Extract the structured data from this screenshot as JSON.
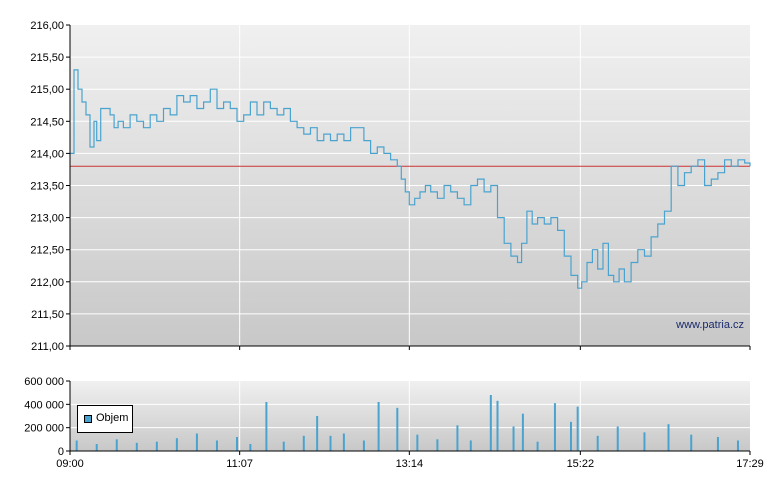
{
  "chart_data": [
    {
      "type": "line",
      "x_ticks": [
        "09:00",
        "11:07",
        "13:14",
        "15:22",
        "17:29"
      ],
      "y_ticks": [
        "211,00",
        "211,50",
        "212,00",
        "212,50",
        "213,00",
        "213,50",
        "214,00",
        "214,50",
        "215,00",
        "215,50",
        "216,00"
      ],
      "ylim": [
        211.0,
        216.0
      ],
      "xlim_minutes": [
        540,
        1049
      ],
      "reference_line": 213.8,
      "watermark": "www.patria.cz",
      "grid": true,
      "colors": {
        "line": "#4aa3cf",
        "reference": "#cc3333",
        "grid": "#ffffff"
      },
      "series": [
        {
          "values": [
            {
              "t": "09:00",
              "v": 214.0
            },
            {
              "t": "09:03",
              "v": 215.3
            },
            {
              "t": "09:06",
              "v": 215.0
            },
            {
              "t": "09:09",
              "v": 214.8
            },
            {
              "t": "09:12",
              "v": 214.6
            },
            {
              "t": "09:15",
              "v": 214.1
            },
            {
              "t": "09:18",
              "v": 214.5
            },
            {
              "t": "09:20",
              "v": 214.2
            },
            {
              "t": "09:23",
              "v": 214.7
            },
            {
              "t": "09:27",
              "v": 214.7
            },
            {
              "t": "09:30",
              "v": 214.6
            },
            {
              "t": "09:33",
              "v": 214.4
            },
            {
              "t": "09:36",
              "v": 214.5
            },
            {
              "t": "09:40",
              "v": 214.4
            },
            {
              "t": "09:45",
              "v": 214.6
            },
            {
              "t": "09:50",
              "v": 214.5
            },
            {
              "t": "09:55",
              "v": 214.4
            },
            {
              "t": "10:00",
              "v": 214.6
            },
            {
              "t": "10:05",
              "v": 214.5
            },
            {
              "t": "10:10",
              "v": 214.7
            },
            {
              "t": "10:15",
              "v": 214.6
            },
            {
              "t": "10:20",
              "v": 214.9
            },
            {
              "t": "10:25",
              "v": 214.8
            },
            {
              "t": "10:30",
              "v": 214.9
            },
            {
              "t": "10:35",
              "v": 214.7
            },
            {
              "t": "10:40",
              "v": 214.8
            },
            {
              "t": "10:45",
              "v": 215.0
            },
            {
              "t": "10:50",
              "v": 214.7
            },
            {
              "t": "10:55",
              "v": 214.8
            },
            {
              "t": "11:00",
              "v": 214.7
            },
            {
              "t": "11:05",
              "v": 214.5
            },
            {
              "t": "11:10",
              "v": 214.6
            },
            {
              "t": "11:15",
              "v": 214.8
            },
            {
              "t": "11:20",
              "v": 214.6
            },
            {
              "t": "11:25",
              "v": 214.8
            },
            {
              "t": "11:30",
              "v": 214.7
            },
            {
              "t": "11:35",
              "v": 214.6
            },
            {
              "t": "11:40",
              "v": 214.7
            },
            {
              "t": "11:45",
              "v": 214.5
            },
            {
              "t": "11:50",
              "v": 214.4
            },
            {
              "t": "11:55",
              "v": 214.3
            },
            {
              "t": "12:00",
              "v": 214.4
            },
            {
              "t": "12:05",
              "v": 214.2
            },
            {
              "t": "12:10",
              "v": 214.3
            },
            {
              "t": "12:15",
              "v": 214.2
            },
            {
              "t": "12:20",
              "v": 214.3
            },
            {
              "t": "12:25",
              "v": 214.2
            },
            {
              "t": "12:30",
              "v": 214.4
            },
            {
              "t": "12:35",
              "v": 214.4
            },
            {
              "t": "12:40",
              "v": 214.2
            },
            {
              "t": "12:45",
              "v": 214.0
            },
            {
              "t": "12:50",
              "v": 214.1
            },
            {
              "t": "12:55",
              "v": 214.0
            },
            {
              "t": "13:00",
              "v": 213.9
            },
            {
              "t": "13:05",
              "v": 213.8
            },
            {
              "t": "13:08",
              "v": 213.6
            },
            {
              "t": "13:11",
              "v": 213.4
            },
            {
              "t": "13:14",
              "v": 213.2
            },
            {
              "t": "13:18",
              "v": 213.3
            },
            {
              "t": "13:22",
              "v": 213.4
            },
            {
              "t": "13:26",
              "v": 213.5
            },
            {
              "t": "13:30",
              "v": 213.4
            },
            {
              "t": "13:35",
              "v": 213.3
            },
            {
              "t": "13:40",
              "v": 213.5
            },
            {
              "t": "13:45",
              "v": 213.4
            },
            {
              "t": "13:50",
              "v": 213.3
            },
            {
              "t": "13:55",
              "v": 213.2
            },
            {
              "t": "14:00",
              "v": 213.5
            },
            {
              "t": "14:05",
              "v": 213.6
            },
            {
              "t": "14:10",
              "v": 213.4
            },
            {
              "t": "14:15",
              "v": 213.5
            },
            {
              "t": "14:20",
              "v": 213.0
            },
            {
              "t": "14:25",
              "v": 212.6
            },
            {
              "t": "14:30",
              "v": 212.4
            },
            {
              "t": "14:35",
              "v": 212.3
            },
            {
              "t": "14:38",
              "v": 212.6
            },
            {
              "t": "14:42",
              "v": 213.1
            },
            {
              "t": "14:46",
              "v": 212.9
            },
            {
              "t": "14:50",
              "v": 213.0
            },
            {
              "t": "14:55",
              "v": 212.9
            },
            {
              "t": "15:00",
              "v": 213.0
            },
            {
              "t": "15:05",
              "v": 212.8
            },
            {
              "t": "15:10",
              "v": 212.4
            },
            {
              "t": "15:15",
              "v": 212.1
            },
            {
              "t": "15:20",
              "v": 211.9
            },
            {
              "t": "15:23",
              "v": 212.0
            },
            {
              "t": "15:27",
              "v": 212.3
            },
            {
              "t": "15:31",
              "v": 212.5
            },
            {
              "t": "15:35",
              "v": 212.2
            },
            {
              "t": "15:39",
              "v": 212.6
            },
            {
              "t": "15:43",
              "v": 212.1
            },
            {
              "t": "15:47",
              "v": 212.0
            },
            {
              "t": "15:51",
              "v": 212.2
            },
            {
              "t": "15:55",
              "v": 212.0
            },
            {
              "t": "16:00",
              "v": 212.3
            },
            {
              "t": "16:05",
              "v": 212.5
            },
            {
              "t": "16:10",
              "v": 212.4
            },
            {
              "t": "16:15",
              "v": 212.7
            },
            {
              "t": "16:20",
              "v": 212.9
            },
            {
              "t": "16:25",
              "v": 213.1
            },
            {
              "t": "16:30",
              "v": 213.8
            },
            {
              "t": "16:35",
              "v": 213.5
            },
            {
              "t": "16:40",
              "v": 213.7
            },
            {
              "t": "16:45",
              "v": 213.8
            },
            {
              "t": "16:50",
              "v": 213.9
            },
            {
              "t": "16:55",
              "v": 213.5
            },
            {
              "t": "17:00",
              "v": 213.6
            },
            {
              "t": "17:05",
              "v": 213.7
            },
            {
              "t": "17:10",
              "v": 213.9
            },
            {
              "t": "17:15",
              "v": 213.8
            },
            {
              "t": "17:20",
              "v": 213.9
            },
            {
              "t": "17:25",
              "v": 213.85
            },
            {
              "t": "17:29",
              "v": 213.8
            }
          ]
        }
      ]
    },
    {
      "type": "bar",
      "x_ticks": [
        "09:00",
        "11:07",
        "13:14",
        "15:22",
        "17:29"
      ],
      "y_ticks": [
        "0",
        "200 000",
        "400 000",
        "600 000"
      ],
      "ylim": [
        0,
        600000
      ],
      "xlim_minutes": [
        540,
        1049
      ],
      "grid": true,
      "legend": "top-left",
      "colors": {
        "bar": "#4aa3cf",
        "grid": "#ffffff"
      },
      "series": [
        {
          "name": "Objem",
          "values": [
            {
              "t": "09:05",
              "v": 90000
            },
            {
              "t": "09:20",
              "v": 60000
            },
            {
              "t": "09:35",
              "v": 100000
            },
            {
              "t": "09:50",
              "v": 70000
            },
            {
              "t": "10:05",
              "v": 80000
            },
            {
              "t": "10:20",
              "v": 110000
            },
            {
              "t": "10:35",
              "v": 150000
            },
            {
              "t": "10:50",
              "v": 90000
            },
            {
              "t": "11:05",
              "v": 120000
            },
            {
              "t": "11:15",
              "v": 60000
            },
            {
              "t": "11:27",
              "v": 420000
            },
            {
              "t": "11:40",
              "v": 80000
            },
            {
              "t": "11:55",
              "v": 130000
            },
            {
              "t": "12:05",
              "v": 300000
            },
            {
              "t": "12:15",
              "v": 130000
            },
            {
              "t": "12:25",
              "v": 150000
            },
            {
              "t": "12:40",
              "v": 90000
            },
            {
              "t": "12:51",
              "v": 420000
            },
            {
              "t": "13:05",
              "v": 370000
            },
            {
              "t": "13:20",
              "v": 140000
            },
            {
              "t": "13:35",
              "v": 100000
            },
            {
              "t": "13:50",
              "v": 220000
            },
            {
              "t": "14:00",
              "v": 90000
            },
            {
              "t": "14:15",
              "v": 480000
            },
            {
              "t": "14:20",
              "v": 430000
            },
            {
              "t": "14:32",
              "v": 210000
            },
            {
              "t": "14:39",
              "v": 320000
            },
            {
              "t": "14:50",
              "v": 80000
            },
            {
              "t": "15:03",
              "v": 410000
            },
            {
              "t": "15:15",
              "v": 250000
            },
            {
              "t": "15:20",
              "v": 380000
            },
            {
              "t": "15:35",
              "v": 130000
            },
            {
              "t": "15:50",
              "v": 210000
            },
            {
              "t": "16:10",
              "v": 160000
            },
            {
              "t": "16:28",
              "v": 230000
            },
            {
              "t": "16:45",
              "v": 140000
            },
            {
              "t": "17:05",
              "v": 120000
            },
            {
              "t": "17:20",
              "v": 90000
            }
          ]
        }
      ]
    }
  ]
}
